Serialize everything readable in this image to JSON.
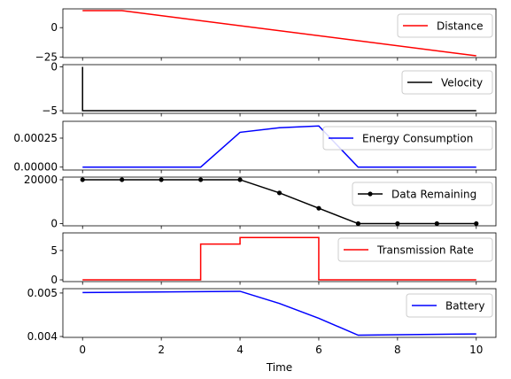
{
  "chart_data": [
    {
      "type": "line",
      "xlabel": "",
      "ylim": [
        -25.5,
        16
      ],
      "xlim": [
        -0.5,
        10.5
      ],
      "yticks": [
        0,
        -25
      ],
      "series": [
        {
          "name": "Distance",
          "color": "#ff0000",
          "step": false,
          "markers": false,
          "x": [
            0,
            1,
            10
          ],
          "y": [
            14.5,
            14.5,
            -24
          ]
        }
      ],
      "legend": "upper right"
    },
    {
      "type": "line",
      "xlabel": "",
      "ylim": [
        -5.3,
        0.25
      ],
      "xlim": [
        -0.5,
        10.5
      ],
      "yticks": [
        0,
        -5
      ],
      "series": [
        {
          "name": "Velocity",
          "color": "#000000",
          "step": false,
          "markers": false,
          "x": [
            0,
            0,
            10
          ],
          "y": [
            0,
            -5,
            -5
          ]
        }
      ],
      "legend": "right"
    },
    {
      "type": "line",
      "xlabel": "",
      "ylim": [
        -2.5e-05,
        0.000395
      ],
      "xlim": [
        -0.5,
        10.5
      ],
      "yticks": [
        0.00025,
        0.0
      ],
      "ytick_labels": [
        "0.00025",
        "0.00000"
      ],
      "series": [
        {
          "name": "Energy Consumption",
          "color": "#0000ff",
          "step": false,
          "markers": false,
          "x": [
            0,
            1,
            2,
            3,
            4,
            5,
            6,
            7,
            8,
            9,
            10
          ],
          "y": [
            0,
            0,
            0,
            0,
            0.0003,
            0.00034,
            0.000355,
            0,
            0,
            0,
            0
          ]
        }
      ],
      "legend": "lower right"
    },
    {
      "type": "line",
      "xlabel": "",
      "ylim": [
        -1000,
        21200
      ],
      "xlim": [
        -0.5,
        10.5
      ],
      "yticks": [
        20000,
        0
      ],
      "series": [
        {
          "name": "Data Remaining",
          "color": "#000000",
          "step": false,
          "markers": true,
          "x": [
            0,
            1,
            2,
            3,
            4,
            5,
            6,
            7,
            8,
            9,
            10
          ],
          "y": [
            20000,
            20000,
            20000,
            20000,
            20000,
            14000,
            7000,
            0,
            0,
            0,
            0
          ]
        }
      ],
      "legend": "right"
    },
    {
      "type": "line",
      "xlabel": "",
      "ylim": [
        -0.3,
        8.0
      ],
      "xlim": [
        -0.5,
        10.5
      ],
      "yticks": [
        5,
        0
      ],
      "series": [
        {
          "name": "Transmission Rate",
          "color": "#ff0000",
          "step": true,
          "markers": false,
          "x": [
            0,
            3,
            3,
            4,
            4,
            6,
            6,
            10
          ],
          "y": [
            0,
            0,
            6.1,
            6.1,
            7.2,
            7.2,
            0,
            0
          ]
        }
      ],
      "legend": "upper right"
    },
    {
      "type": "line",
      "xlabel": "Time",
      "ylim": [
        0.00398,
        0.0051
      ],
      "xlim": [
        -0.5,
        10.5
      ],
      "yticks": [
        0.005,
        0.004
      ],
      "ytick_labels": [
        "0.005",
        "0.004"
      ],
      "xticks": [
        0,
        2,
        4,
        6,
        8,
        10
      ],
      "series": [
        {
          "name": "Battery",
          "color": "#0000ff",
          "step": false,
          "markers": false,
          "x": [
            0,
            4,
            5,
            6,
            7,
            10
          ],
          "y": [
            0.00501,
            0.00504,
            0.00476,
            0.00442,
            0.00403,
            0.00406
          ]
        }
      ],
      "legend": "right"
    }
  ]
}
